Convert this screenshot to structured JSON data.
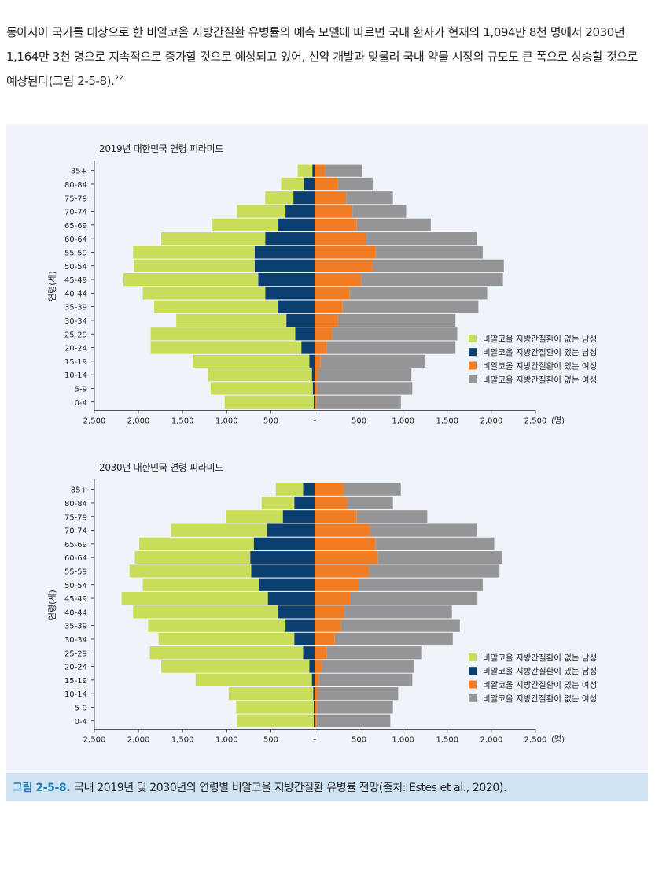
{
  "intro": {
    "text": "동아시아 국가를 대상으로 한 비알코올 지방간질환 유병률의 예측 모델에 따르면 국내 환자가 현재의 1,094만 8천 명에서 2030년 1,164만 3천 명으로 지속적으로 증가할 것으로 예상되고 있어, 신약 개발과 맞물려 국내 약물 시장의 규모도 큰 폭으로 상승할 것으로 예상된다(그림 2-5-8).",
    "footnote": "22"
  },
  "caption": {
    "label": "그림 2-5-8.",
    "text": "국내 2019년 및 2030년의 연령별 비알코올 지방간질환 유병률 전망(출처: Estes et al., 2020)."
  },
  "colors": {
    "male_without": "#c9dd59",
    "male_with": "#0b3f70",
    "female_with": "#f07d23",
    "female_without": "#959597"
  },
  "chart_data": [
    {
      "type": "bar",
      "orientation": "horizontal-population-pyramid",
      "title": "2019년 대한민국 연령 피라미드",
      "ylabel": "연령(세)",
      "xlabel": "",
      "x_unit": "(명)",
      "xlim": [
        -2500,
        2500
      ],
      "x_ticks": [
        "2,500",
        "2,000",
        "1,500",
        "1,000",
        "500",
        "-",
        "500",
        "1,000",
        "1,500",
        "2,000",
        "2,500"
      ],
      "categories": [
        "85+",
        "80-84",
        "75-79",
        "70-74",
        "65-69",
        "60-64",
        "55-59",
        "50-54",
        "45-49",
        "40-44",
        "35-39",
        "30-34",
        "25-29",
        "20-24",
        "15-19",
        "10-14",
        "5-9",
        "0-4"
      ],
      "legend_position": "bottom-right",
      "series": [
        {
          "name": "비알코올 지방간질환이 없는 남성",
          "side": "left",
          "values": [
            165,
            260,
            320,
            550,
            750,
            1180,
            1380,
            1370,
            1530,
            1390,
            1400,
            1250,
            1640,
            1710,
            1320,
            1180,
            1160,
            1010
          ]
        },
        {
          "name": "비알코올 지방간질환이 있는 남성",
          "side": "left",
          "values": [
            25,
            120,
            240,
            330,
            420,
            560,
            680,
            680,
            640,
            560,
            420,
            320,
            220,
            150,
            60,
            30,
            20,
            10
          ]
        },
        {
          "name": "비알코올 지방간질환이 있는 여성",
          "side": "right",
          "values": [
            120,
            260,
            360,
            430,
            480,
            590,
            690,
            660,
            530,
            400,
            320,
            260,
            200,
            140,
            70,
            40,
            30,
            20
          ]
        },
        {
          "name": "비알코올 지방간질환이 없는 여성",
          "side": "right",
          "values": [
            420,
            400,
            530,
            610,
            840,
            1250,
            1220,
            1490,
            1610,
            1560,
            1540,
            1340,
            1420,
            1460,
            1190,
            1060,
            1080,
            960
          ]
        }
      ]
    },
    {
      "type": "bar",
      "orientation": "horizontal-population-pyramid",
      "title": "2030년 대한민국 연령 피라미드",
      "ylabel": "연령(세)",
      "xlabel": "",
      "x_unit": "(명)",
      "xlim": [
        -2500,
        2500
      ],
      "x_ticks": [
        "2,500",
        "2,000",
        "1,500",
        "1,000",
        "500",
        "-",
        "500",
        "1,000",
        "1,500",
        "2,000",
        "2,500"
      ],
      "categories": [
        "85+",
        "80-84",
        "75-79",
        "70-74",
        "65-69",
        "60-64",
        "55-59",
        "50-54",
        "45-49",
        "40-44",
        "35-39",
        "30-34",
        "25-29",
        "20-24",
        "15-19",
        "10-14",
        "5-9",
        "0-4"
      ],
      "legend_position": "bottom-right",
      "series": [
        {
          "name": "비알코올 지방간질환이 없는 남성",
          "side": "left",
          "values": [
            310,
            370,
            650,
            1090,
            1300,
            1310,
            1380,
            1320,
            1660,
            1640,
            1560,
            1540,
            1740,
            1680,
            1320,
            960,
            880,
            870
          ]
        },
        {
          "name": "비알코올 지방간질환이 있는 남성",
          "side": "left",
          "values": [
            130,
            230,
            360,
            540,
            690,
            730,
            720,
            630,
            530,
            420,
            330,
            230,
            130,
            60,
            30,
            15,
            10,
            10
          ]
        },
        {
          "name": "비알코올 지방간질환이 있는 여성",
          "side": "right",
          "values": [
            330,
            370,
            480,
            630,
            690,
            720,
            620,
            500,
            410,
            340,
            300,
            230,
            140,
            80,
            50,
            40,
            30,
            20
          ]
        },
        {
          "name": "비알코올 지방간질환이 없는 여성",
          "side": "right",
          "values": [
            650,
            520,
            800,
            1210,
            1350,
            1410,
            1480,
            1410,
            1440,
            1220,
            1350,
            1340,
            1080,
            1050,
            1060,
            910,
            860,
            840
          ]
        }
      ]
    }
  ]
}
